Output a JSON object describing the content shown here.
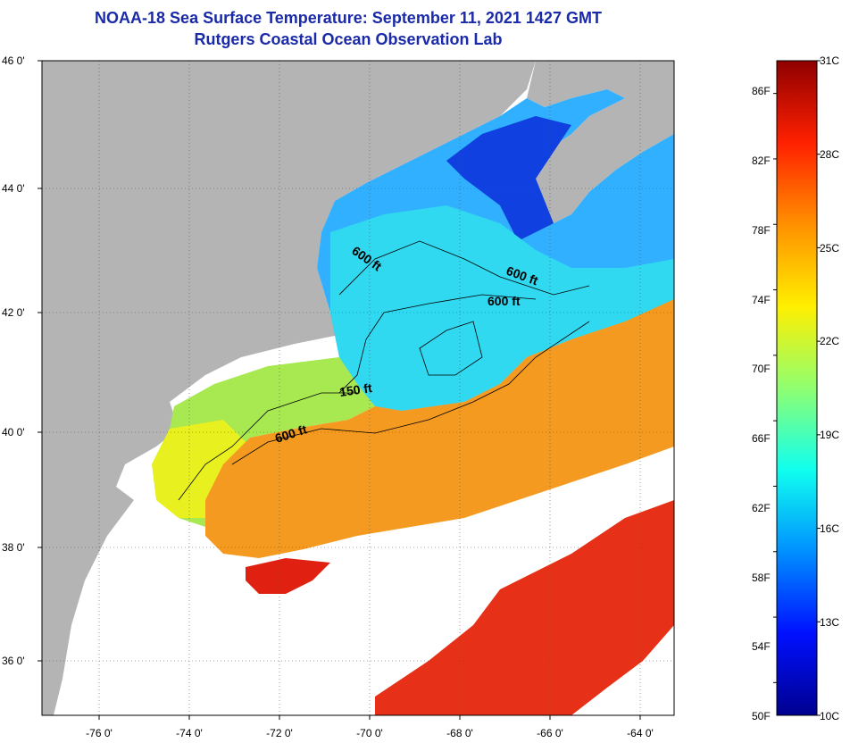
{
  "title_line1": "NOAA-18 Sea Surface Temperature:  September 11, 2021 1427 GMT",
  "title_line2": "Rutgers Coastal Ocean Observation Lab",
  "y_ticks": [
    "46 0'",
    "44 0'",
    "42 0'",
    "40 0'",
    "38 0'",
    "36 0'"
  ],
  "x_ticks": [
    "-76 0'",
    "-74 0'",
    "-72 0'",
    "-70 0'",
    "-68 0'",
    "-66 0'",
    "-64 0'"
  ],
  "contours": [
    {
      "label": "600 ft",
      "id": "c1"
    },
    {
      "label": "600 ft",
      "id": "c2"
    },
    {
      "label": "600 ft",
      "id": "c3"
    },
    {
      "label": "150 ft",
      "id": "c4"
    },
    {
      "label": "600 ft",
      "id": "c5"
    }
  ],
  "colorbar": {
    "fahrenheit": [
      "86F",
      "82F",
      "78F",
      "74F",
      "70F",
      "66F",
      "62F",
      "58F",
      "54F",
      "50F"
    ],
    "celsius": [
      "31C",
      "28C",
      "25C",
      "22C",
      "19C",
      "16C",
      "13C",
      "10C"
    ],
    "colors": [
      "#00008f",
      "#0010ff",
      "#0090ff",
      "#10ffef",
      "#90ff70",
      "#ffef00",
      "#ff9000",
      "#ff2000",
      "#8f0000"
    ]
  }
}
